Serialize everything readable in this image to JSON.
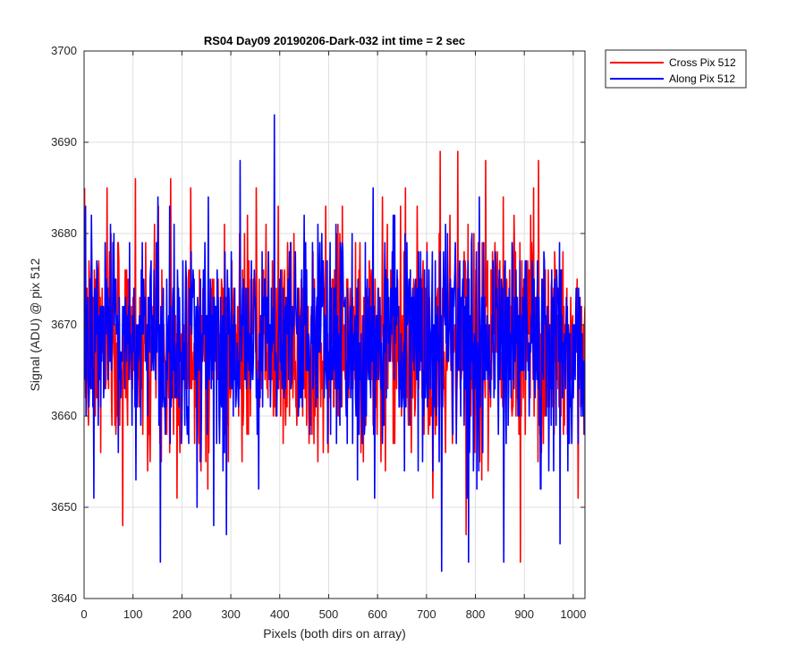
{
  "chart_data": {
    "type": "line",
    "title": "RS04 Day09 20190206-Dark-032 int time = 2 sec",
    "xlabel": "Pixels (both dirs on array)",
    "ylabel": "Signal (ADU) @ pix 512",
    "xlim": [
      0,
      1024
    ],
    "ylim": [
      3640,
      3700
    ],
    "xticks": [
      0,
      100,
      200,
      300,
      400,
      500,
      600,
      700,
      800,
      900,
      1000
    ],
    "yticks": [
      3640,
      3650,
      3660,
      3670,
      3680,
      3690,
      3700
    ],
    "grid": true,
    "legend_position": "outside-top-right",
    "noise": {
      "n_points": 1024,
      "center": 3668,
      "spread": 6,
      "seeds": [
        7,
        13
      ]
    },
    "series": [
      {
        "name": "Cross Pix 512",
        "color": "#ff0000",
        "peaks": [
          {
            "x": 78,
            "y": 3648
          },
          {
            "x": 104,
            "y": 3686
          },
          {
            "x": 176,
            "y": 3686
          },
          {
            "x": 727,
            "y": 3689
          },
          {
            "x": 763,
            "y": 3689
          },
          {
            "x": 780,
            "y": 3647
          },
          {
            "x": 820,
            "y": 3688
          },
          {
            "x": 891,
            "y": 3644
          },
          {
            "x": 928,
            "y": 3688
          }
        ]
      },
      {
        "name": "Along Pix 512",
        "color": "#0000ff",
        "peaks": [
          {
            "x": 155,
            "y": 3644
          },
          {
            "x": 230,
            "y": 3650
          },
          {
            "x": 264,
            "y": 3648
          },
          {
            "x": 290,
            "y": 3647
          },
          {
            "x": 318,
            "y": 3688
          },
          {
            "x": 388,
            "y": 3693
          },
          {
            "x": 730,
            "y": 3643
          },
          {
            "x": 785,
            "y": 3644
          },
          {
            "x": 857,
            "y": 3644
          },
          {
            "x": 972,
            "y": 3646
          }
        ]
      }
    ]
  }
}
